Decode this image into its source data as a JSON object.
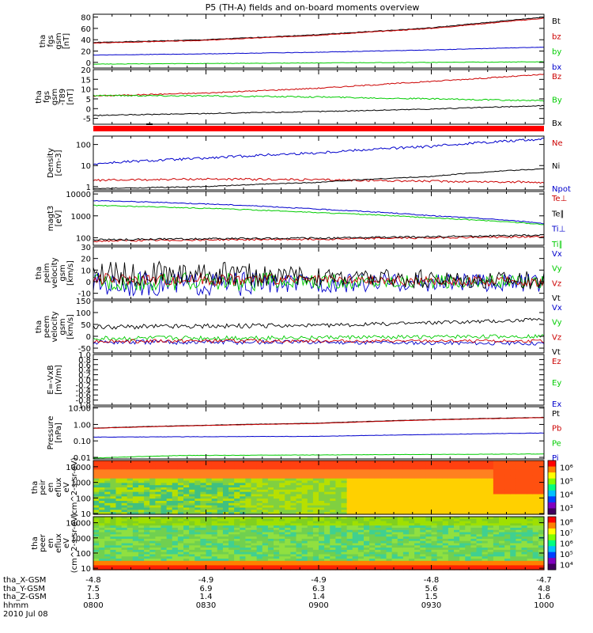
{
  "title": "P5 (TH-A) fields and on-board moments overview",
  "chart_data": {
    "type": "line",
    "title": "P5 (TH-A) fields and on-board moments overview",
    "x_range": [
      "08:00",
      "10:00"
    ],
    "panels": [
      {
        "id": "fgs",
        "ylabel": [
          "tha",
          "fgs",
          "gsm",
          "[nT]"
        ],
        "ylim": [
          -10,
          85
        ],
        "yticks": [
          0,
          20,
          40,
          60,
          80
        ],
        "series": [
          {
            "name": "Bt",
            "color": "#000000",
            "x": [
              0,
              0.25,
              0.5,
              0.75,
              1
            ],
            "values": [
              35,
              40,
              49,
              61,
              80
            ],
            "noise": 0.6
          },
          {
            "name": "bz",
            "color": "#cc0000",
            "x": [
              0,
              0.25,
              0.5,
              0.75,
              1
            ],
            "values": [
              34,
              39,
              48,
              60,
              78
            ],
            "noise": 0.6
          },
          {
            "name": "by",
            "color": "#00cc00",
            "x": [
              0,
              0.25,
              0.5,
              0.75,
              1
            ],
            "values": [
              -3,
              -2,
              -1,
              0,
              1
            ],
            "noise": 0.4
          },
          {
            "name": "bx",
            "color": "#0000cc",
            "x": [
              0,
              0.25,
              0.5,
              0.75,
              1
            ],
            "values": [
              13,
              15,
              18,
              22,
              27
            ],
            "noise": 0.4
          }
        ]
      },
      {
        "id": "gsm",
        "ylabel": [
          "tha",
          "fgs",
          "gsm",
          "-T89",
          "[nT]"
        ],
        "ylim": [
          -8,
          20
        ],
        "yticks": [
          -5,
          0,
          5,
          10,
          15,
          20
        ],
        "series": [
          {
            "name": "Bz",
            "color": "#cc0000",
            "x": [
              0,
              0.25,
              0.5,
              0.75,
              1
            ],
            "values": [
              6.5,
              8,
              10.5,
              14,
              17.5
            ],
            "noise": 0.3
          },
          {
            "name": "By",
            "color": "#00cc00",
            "x": [
              0,
              0.25,
              0.5,
              0.75,
              1
            ],
            "values": [
              6.8,
              6.5,
              6,
              5,
              4
            ],
            "noise": 0.35
          },
          {
            "name": "Bx",
            "color": "#000000",
            "x": [
              0,
              0.25,
              0.5,
              0.75,
              1
            ],
            "values": [
              -3.5,
              -2.5,
              -1.5,
              -0.2,
              1.5
            ],
            "noise": 0.25
          }
        ]
      },
      {
        "id": "density",
        "ylabel": [
          "Density",
          "[cm-3]"
        ],
        "scale": "log",
        "ylim": [
          0.7,
          250
        ],
        "yticks": [
          1,
          10,
          100
        ],
        "series": [
          {
            "name": "Ne",
            "color": "#cc0000",
            "x": [
              0,
              0.25,
              0.5,
              0.75,
              1
            ],
            "values": [
              2,
              2.3,
              2.1,
              1.8,
              1.6
            ],
            "noise": 0.05
          },
          {
            "name": "Ni",
            "color": "#000000",
            "x": [
              0,
              0.25,
              0.5,
              0.75,
              1
            ],
            "values": [
              0.8,
              1.0,
              1.6,
              3.0,
              7
            ],
            "noise": 0.02
          },
          {
            "name": "Npot",
            "color": "#0000cc",
            "x": [
              0,
              0.25,
              0.5,
              0.75,
              1
            ],
            "values": [
              12,
              22,
              40,
              80,
              180
            ],
            "noise": 0.06
          }
        ]
      },
      {
        "id": "temp",
        "ylabel": [
          "magt3",
          "[eV]"
        ],
        "scale": "log",
        "ylim": [
          45,
          13000
        ],
        "yticks": [
          100,
          1000,
          10000
        ],
        "series": [
          {
            "name": "Te⊥",
            "color": "#cc0000",
            "x": [
              0,
              0.25,
              0.5,
              0.75,
              1
            ],
            "values": [
              70,
              80,
              85,
              100,
              110
            ],
            "noise": 0.04
          },
          {
            "name": "Te∥",
            "color": "#000000",
            "x": [
              0,
              0.25,
              0.5,
              0.75,
              1
            ],
            "values": [
              80,
              90,
              95,
              110,
              130
            ],
            "noise": 0.04
          },
          {
            "name": "Ti⊥",
            "color": "#0000cc",
            "x": [
              0,
              0.25,
              0.5,
              0.75,
              1
            ],
            "values": [
              5000,
              3500,
              2000,
              1000,
              450
            ],
            "noise": 0.02
          },
          {
            "name": "Ti∥",
            "color": "#00cc00",
            "x": [
              0,
              0.25,
              0.5,
              0.75,
              1
            ],
            "values": [
              3000,
              2200,
              1400,
              800,
              400
            ],
            "noise": 0.02
          }
        ]
      },
      {
        "id": "vel1",
        "ylabel": [
          "tha",
          "peim",
          "velocity",
          "gsm",
          "[km/s]"
        ],
        "ylim": [
          -15,
          30
        ],
        "yticks": [
          -10,
          0,
          10,
          20,
          30
        ],
        "series": [
          {
            "name": "Vx",
            "color": "#0000cc",
            "x": [
              0,
              0.3,
              0.6,
              1
            ],
            "values": [
              -2,
              -2,
              -1,
              -1
            ],
            "noise": 8
          },
          {
            "name": "Vy",
            "color": "#00cc00",
            "x": [
              0,
              0.3,
              0.6,
              1
            ],
            "values": [
              0,
              0,
              0,
              0
            ],
            "noise": 6
          },
          {
            "name": "Vz",
            "color": "#cc0000",
            "x": [
              0,
              0.3,
              0.6,
              1
            ],
            "values": [
              2,
              2,
              1,
              0
            ],
            "noise": 4
          },
          {
            "name": "Vt",
            "color": "#000000",
            "x": [
              0,
              0.3,
              0.6,
              1
            ],
            "values": [
              7,
              7,
              3,
              1
            ],
            "noise": 8
          }
        ]
      },
      {
        "id": "vel2",
        "ylabel": [
          "tha",
          "peem",
          "velocity",
          "gsm",
          "[km/s]"
        ],
        "ylim": [
          -70,
          150
        ],
        "yticks": [
          -50,
          0,
          50,
          100,
          150
        ],
        "series": [
          {
            "name": "Vx",
            "color": "#0000cc",
            "x": [
              0,
              0.5,
              1
            ],
            "values": [
              -25,
              -25,
              -30
            ],
            "noise": 8
          },
          {
            "name": "Vy",
            "color": "#00cc00",
            "x": [
              0,
              0.5,
              1
            ],
            "values": [
              -10,
              -5,
              0
            ],
            "noise": 8
          },
          {
            "name": "Vz",
            "color": "#cc0000",
            "x": [
              0,
              0.5,
              1
            ],
            "values": [
              -20,
              -20,
              -20
            ],
            "noise": 6
          },
          {
            "name": "Vt",
            "color": "#000000",
            "x": [
              0,
              0.5,
              1
            ],
            "values": [
              40,
              45,
              70
            ],
            "noise": 8
          }
        ]
      },
      {
        "id": "efield",
        "ylabel": [
          "E=-VxB",
          "[mV/m]"
        ],
        "ylim": [
          -1,
          1
        ],
        "yticks": [
          -1.0,
          -0.8,
          -0.6,
          -0.4,
          -0.2,
          0.0,
          0.2,
          0.4,
          0.6,
          0.8,
          1.0
        ],
        "series": [
          {
            "name": "Ez",
            "color": "#cc0000",
            "x": [],
            "values": []
          },
          {
            "name": "Ey",
            "color": "#00cc00",
            "x": [],
            "values": []
          },
          {
            "name": "Ex",
            "color": "#0000cc",
            "x": [],
            "values": []
          }
        ]
      },
      {
        "id": "pressure",
        "ylabel": [
          "Pressure",
          "[nPa]"
        ],
        "scale": "log",
        "ylim": [
          0.008,
          12
        ],
        "yticks": [
          0.01,
          0.1,
          1.0,
          10.0
        ],
        "series": [
          {
            "name": "Pt",
            "color": "#000000",
            "x": [
              0,
              0.5,
              1
            ],
            "values": [
              0.6,
              1.2,
              2.7
            ],
            "noise": 0.01
          },
          {
            "name": "Pb",
            "color": "#cc0000",
            "x": [
              0,
              0.5,
              1
            ],
            "values": [
              0.58,
              1.15,
              2.6
            ],
            "noise": 0.01
          },
          {
            "name": "Pe",
            "color": "#00cc00",
            "x": [
              0,
              0.2,
              0.5,
              1
            ],
            "values": [
              0.009,
              0.013,
              0.014,
              0.016
            ],
            "noise": 0.01
          },
          {
            "name": "Pi",
            "color": "#0000cc",
            "x": [
              0,
              0.5,
              1
            ],
            "values": [
              0.17,
              0.19,
              0.3
            ],
            "noise": 0.01
          }
        ]
      },
      {
        "id": "peir",
        "type": "heatmap",
        "ylabel": [
          "tha",
          "peir",
          "en",
          "eflux",
          "eV",
          "(cm^2-s-sr-eV)"
        ],
        "scale": "log",
        "ylim": [
          9,
          25000
        ],
        "yticks": [
          10,
          100,
          1000,
          10000
        ],
        "colorbar_ticks": [
          "10³",
          "10⁴",
          "10⁵",
          "10⁶"
        ]
      },
      {
        "id": "peer",
        "type": "heatmap",
        "ylabel": [
          "tha",
          "peer",
          "en",
          "eflux",
          "eV",
          "(cm^2-s-sr-eV)"
        ],
        "scale": "log",
        "ylim": [
          8,
          25000
        ],
        "yticks": [
          10,
          100,
          1000,
          10000
        ],
        "colorbar_ticks": [
          "10⁴",
          "10⁵",
          "10⁶",
          "10⁷",
          "10⁸"
        ]
      }
    ],
    "ephemeris": {
      "labels": [
        "tha_X-GSM",
        "tha_Y-GSM",
        "tha_Z-GSM",
        "hhmm",
        "2010 Jul 08"
      ],
      "columns": [
        [
          "-4.8",
          "7.5",
          "1.3",
          "0800"
        ],
        [
          "-4.9",
          "6.9",
          "1.4",
          "0830"
        ],
        [
          "-4.9",
          "6.3",
          "1.4",
          "0900"
        ],
        [
          "-4.8",
          "5.6",
          "1.5",
          "0930"
        ],
        [
          "-4.7",
          "4.8",
          "1.6",
          "1000"
        ]
      ]
    }
  }
}
